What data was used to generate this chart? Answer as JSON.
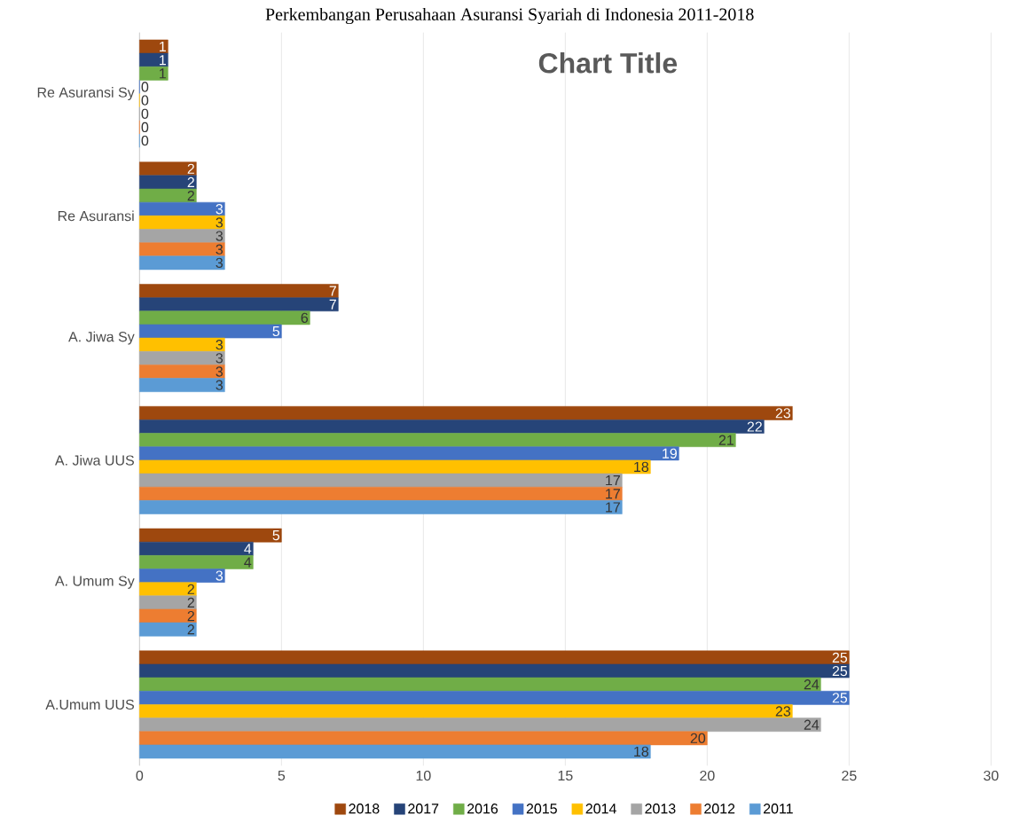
{
  "chart_data": {
    "type": "bar",
    "orientation": "horizontal",
    "title": "Chart Title",
    "annotations": [
      "Perkembangan Perusahaan Asuransi Syariah di Indonesia 2011-2018"
    ],
    "categories": [
      "Re Asuransi Sy",
      "Re Asuransi",
      "A. Jiwa Sy",
      "A. Jiwa UUS",
      "A. Umum Sy",
      "A.Umum UUS"
    ],
    "series": [
      {
        "name": "2018",
        "color": "#9e480e",
        "values": [
          1,
          2,
          7,
          23,
          5,
          25
        ]
      },
      {
        "name": "2017",
        "color": "#264478",
        "values": [
          1,
          2,
          7,
          22,
          4,
          25
        ]
      },
      {
        "name": "2016",
        "color": "#70ad47",
        "values": [
          1,
          2,
          6,
          21,
          4,
          24
        ]
      },
      {
        "name": "2015",
        "color": "#4472c4",
        "values": [
          0,
          3,
          5,
          19,
          3,
          25
        ]
      },
      {
        "name": "2014",
        "color": "#ffc000",
        "values": [
          0,
          3,
          3,
          18,
          2,
          23
        ]
      },
      {
        "name": "2013",
        "color": "#a5a5a5",
        "values": [
          0,
          3,
          3,
          17,
          2,
          24
        ]
      },
      {
        "name": "2012",
        "color": "#ed7d31",
        "values": [
          0,
          3,
          3,
          17,
          2,
          20
        ]
      },
      {
        "name": "2011",
        "color": "#5b9bd5",
        "values": [
          0,
          3,
          3,
          17,
          2,
          18
        ]
      }
    ],
    "xlim": [
      0,
      30
    ],
    "xticks": [
      0,
      5,
      10,
      15,
      20,
      25,
      30
    ],
    "grid": "x",
    "legend": "bottom",
    "data_labels": true
  }
}
